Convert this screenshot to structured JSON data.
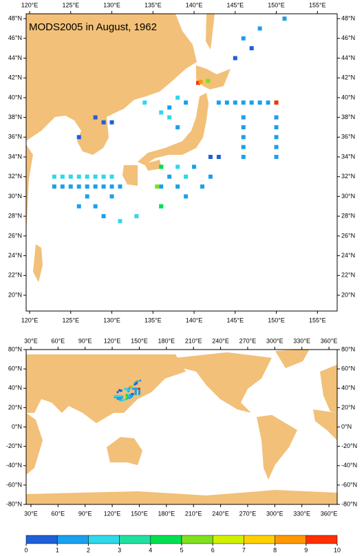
{
  "top_map": {
    "title": "MODS2005 in August, 1962",
    "xlim": [
      119.58,
      157.4
    ],
    "ylim": [
      18.4,
      48.49
    ],
    "xticks": [
      {
        "value": 120,
        "label": "120°E"
      },
      {
        "value": 125,
        "label": "125°E"
      },
      {
        "value": 130,
        "label": "130°E"
      },
      {
        "value": 135,
        "label": "135°E"
      },
      {
        "value": 140,
        "label": "140°E"
      },
      {
        "value": 145,
        "label": "145°E"
      },
      {
        "value": 150,
        "label": "150°E"
      },
      {
        "value": 155,
        "label": "155°E"
      }
    ],
    "yticks": [
      {
        "value": 20,
        "label": "20°N"
      },
      {
        "value": 22,
        "label": "22°N"
      },
      {
        "value": 24,
        "label": "24°N"
      },
      {
        "value": 26,
        "label": "26°N"
      },
      {
        "value": 28,
        "label": "28°N"
      },
      {
        "value": 30,
        "label": "30°N"
      },
      {
        "value": 32,
        "label": "32°N"
      },
      {
        "value": 34,
        "label": "34°N"
      },
      {
        "value": 36,
        "label": "36°N"
      },
      {
        "value": 38,
        "label": "38°N"
      },
      {
        "value": 40,
        "label": "40°N"
      },
      {
        "value": 42,
        "label": "42°N"
      },
      {
        "value": 44,
        "label": "44°N"
      },
      {
        "value": 46,
        "label": "46°N"
      },
      {
        "value": 48,
        "label": "48°N"
      }
    ]
  },
  "bottom_map": {
    "xlim": [
      24.7,
      369.1
    ],
    "ylim": [
      -80,
      80
    ],
    "xticks": [
      {
        "value": 30,
        "label": "30°E"
      },
      {
        "value": 60,
        "label": "60°E"
      },
      {
        "value": 90,
        "label": "90°E"
      },
      {
        "value": 120,
        "label": "120°E"
      },
      {
        "value": 150,
        "label": "150°E"
      },
      {
        "value": 180,
        "label": "180°E"
      },
      {
        "value": 210,
        "label": "210°E"
      },
      {
        "value": 240,
        "label": "240°E"
      },
      {
        "value": 270,
        "label": "270°E"
      },
      {
        "value": 300,
        "label": "300°E"
      },
      {
        "value": 330,
        "label": "330°E"
      },
      {
        "value": 360,
        "label": "360°E"
      }
    ],
    "yticks": [
      {
        "value": -80,
        "label": "-80°N"
      },
      {
        "value": -60,
        "label": "-60°N"
      },
      {
        "value": -40,
        "label": "-40°N"
      },
      {
        "value": -20,
        "label": "-20°N"
      },
      {
        "value": 0,
        "label": "0°N"
      },
      {
        "value": 20,
        "label": "20°N"
      },
      {
        "value": 40,
        "label": "40°N"
      },
      {
        "value": 60,
        "label": "60°N"
      },
      {
        "value": 80,
        "label": "80°N"
      }
    ]
  },
  "observations": {
    "lon": [
      143,
      144,
      145,
      146,
      147,
      148,
      149,
      150,
      146,
      146,
      146,
      146,
      146,
      150,
      150,
      150,
      150,
      150,
      123,
      124,
      125,
      126,
      127,
      128,
      129,
      130,
      131,
      123,
      124,
      125,
      126,
      127,
      128,
      129,
      130,
      134,
      136,
      137,
      138,
      139,
      138,
      137,
      146,
      147,
      148,
      145,
      151,
      129,
      130,
      128,
      126,
      127,
      128,
      129,
      131,
      133,
      126,
      130,
      136,
      136,
      136,
      137,
      138,
      138,
      139,
      139,
      140,
      141,
      142,
      142,
      143,
      140.5,
      140.8,
      141.7,
      150,
      136,
      135.5,
      136
    ],
    "lat": [
      39.5,
      39.5,
      39.5,
      39.5,
      39.5,
      39.5,
      39.5,
      39.5,
      34,
      35,
      36,
      37,
      38,
      34,
      35,
      36,
      37,
      38,
      31,
      31,
      31,
      31,
      31,
      31,
      31,
      31,
      31,
      32,
      32,
      32,
      32,
      32,
      32,
      32,
      32,
      39.5,
      38.5,
      39,
      40,
      39.5,
      37,
      38,
      46,
      45,
      47,
      44,
      48,
      37.5,
      37.5,
      38,
      36,
      30,
      29,
      28,
      27.5,
      28,
      29,
      30,
      33,
      31,
      29,
      32,
      33,
      31,
      30,
      32,
      33,
      31,
      34,
      32,
      34,
      41.5,
      41.6,
      41.7,
      39.5,
      33,
      31,
      29
    ],
    "value": [
      1.5,
      1.5,
      1.5,
      1.5,
      1.5,
      1.5,
      1.5,
      1.5,
      1.5,
      1.5,
      1.5,
      1.5,
      1.5,
      1.5,
      1.5,
      1.5,
      1.5,
      1.5,
      1.5,
      1.5,
      1.5,
      1.5,
      1.5,
      1.5,
      1.5,
      1.5,
      1.5,
      2.5,
      2.5,
      2.5,
      2.5,
      2.5,
      2.5,
      2.5,
      2.5,
      2.5,
      2.5,
      1.5,
      2.5,
      1.5,
      1.5,
      2.5,
      1.5,
      0.5,
      1.5,
      0.5,
      1.5,
      0.5,
      0.5,
      0.5,
      0.5,
      1.5,
      1.5,
      1.5,
      2.5,
      2.5,
      1.5,
      1.5,
      2.5,
      1.5,
      2.5,
      1.5,
      2.5,
      1.5,
      1.5,
      2.5,
      1.5,
      1.5,
      0.5,
      1.5,
      0.5,
      9.6,
      8,
      5,
      9.3,
      4.5,
      5,
      4
    ]
  },
  "colorbar": {
    "ticks": [
      0,
      1,
      2,
      3,
      4,
      5,
      6,
      7,
      8,
      9,
      10
    ],
    "colors": [
      "#1f5fd8",
      "#1aa0ef",
      "#30d8e8",
      "#20e0a0",
      "#00e050",
      "#80e020",
      "#d0f000",
      "#ffd000",
      "#ff9800",
      "#ff3000"
    ]
  }
}
